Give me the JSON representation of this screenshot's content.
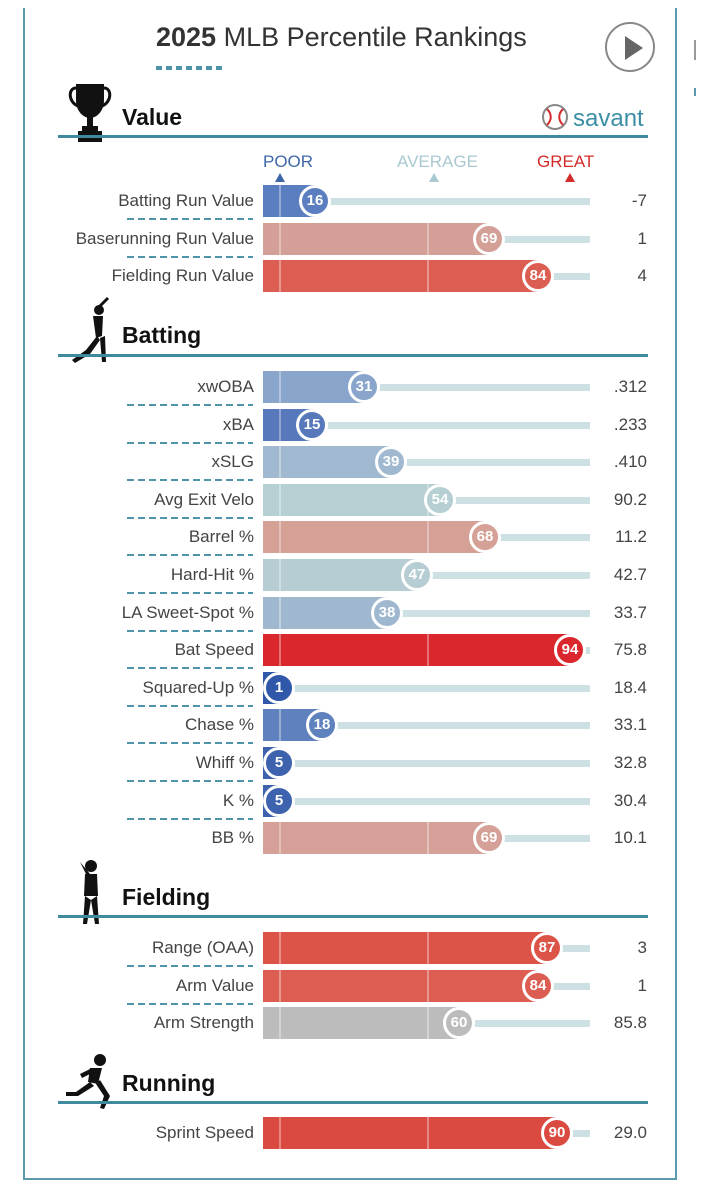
{
  "header": {
    "title_year": "2025",
    "title_rest": " MLB Percentile Rankings",
    "play_button": "play-icon"
  },
  "brand": {
    "label": "savant",
    "icon": "baseball-icon"
  },
  "axis": {
    "poor": "POOR",
    "average": "AVERAGE",
    "great": "GREAT",
    "poor_color": "#3f67a8",
    "average_color": "#a9c8d0",
    "great_color": "#d42b2b"
  },
  "sections": [
    {
      "key": "value",
      "label": "Value",
      "icon": "trophy-icon"
    },
    {
      "key": "batting",
      "label": "Batting",
      "icon": "batter-icon"
    },
    {
      "key": "fielding",
      "label": "Fielding",
      "icon": "fielder-icon"
    },
    {
      "key": "running",
      "label": "Running",
      "icon": "runner-icon"
    }
  ],
  "chart_data": {
    "type": "bar",
    "xlim": [
      0,
      100
    ],
    "rows": [
      {
        "section": "value",
        "metric": "Batting Run Value",
        "percentile": 16,
        "value": "-7",
        "color": "#5a7ebf"
      },
      {
        "section": "value",
        "metric": "Baserunning Run Value",
        "percentile": 69,
        "value": "1",
        "color": "#d39f96"
      },
      {
        "section": "value",
        "metric": "Fielding Run Value",
        "percentile": 84,
        "value": "4",
        "color": "#dc5e53"
      },
      {
        "section": "batting",
        "metric": "xwOBA",
        "percentile": 31,
        "value": ".312",
        "color": "#8aa5cb"
      },
      {
        "section": "batting",
        "metric": "xBA",
        "percentile": 15,
        "value": ".233",
        "color": "#5779bc"
      },
      {
        "section": "batting",
        "metric": "xSLG",
        "percentile": 39,
        "value": ".410",
        "color": "#a1b9d0"
      },
      {
        "section": "batting",
        "metric": "Avg Exit Velo",
        "percentile": 54,
        "value": "90.2",
        "color": "#b6cfd2"
      },
      {
        "section": "batting",
        "metric": "Barrel %",
        "percentile": 68,
        "value": "11.2",
        "color": "#d5a095"
      },
      {
        "section": "batting",
        "metric": "Hard-Hit %",
        "percentile": 47,
        "value": "42.7",
        "color": "#b5cdd3"
      },
      {
        "section": "batting",
        "metric": "LA Sweet-Spot %",
        "percentile": 38,
        "value": "33.7",
        "color": "#a0b8cf"
      },
      {
        "section": "batting",
        "metric": "Bat Speed",
        "percentile": 94,
        "value": "75.8",
        "color": "#d9272d"
      },
      {
        "section": "batting",
        "metric": "Squared-Up %",
        "percentile": 1,
        "value": "18.4",
        "color": "#3058aa"
      },
      {
        "section": "batting",
        "metric": "Chase %",
        "percentile": 18,
        "value": "33.1",
        "color": "#5f81be"
      },
      {
        "section": "batting",
        "metric": "Whiff %",
        "percentile": 5,
        "value": "32.8",
        "color": "#3d63af"
      },
      {
        "section": "batting",
        "metric": "K %",
        "percentile": 5,
        "value": "30.4",
        "color": "#3d63af"
      },
      {
        "section": "batting",
        "metric": "BB %",
        "percentile": 69,
        "value": "10.1",
        "color": "#d4a097"
      },
      {
        "section": "fielding",
        "metric": "Range (OAA)",
        "percentile": 87,
        "value": "3",
        "color": "#dc5448"
      },
      {
        "section": "fielding",
        "metric": "Arm Value",
        "percentile": 84,
        "value": "1",
        "color": "#dc5e53"
      },
      {
        "section": "fielding",
        "metric": "Arm Strength",
        "percentile": 60,
        "value": "85.8",
        "color": "#bcbcbc"
      },
      {
        "section": "running",
        "metric": "Sprint Speed",
        "percentile": 90,
        "value": "29.0",
        "color": "#db4a41"
      }
    ]
  }
}
